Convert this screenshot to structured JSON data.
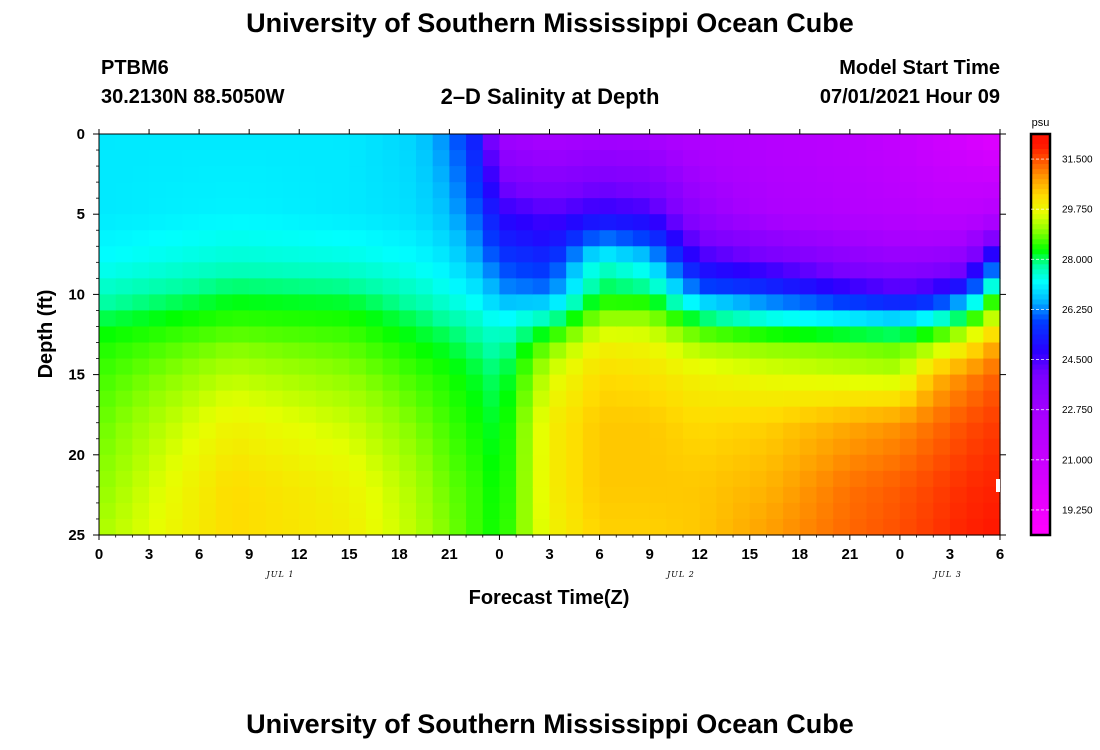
{
  "header": {
    "title": "University of Southern Mississippi Ocean Cube",
    "station": "PTBM6",
    "coords": "30.2130N  88.5050W",
    "subtitle": "2–D Salinity at Depth",
    "model_label": "Model Start Time",
    "model_time": "07/01/2021 Hour 09"
  },
  "footer": {
    "title": "University of Southern Mississippi Ocean Cube"
  },
  "chart_data": {
    "type": "heatmap",
    "title": "2–D Salinity at Depth",
    "xlabel": "Forecast Time(Z)",
    "ylabel": "Depth (ft)",
    "x_ticks": [
      "0",
      "3",
      "6",
      "9",
      "12",
      "15",
      "18",
      "21",
      "0",
      "3",
      "6",
      "9",
      "12",
      "15",
      "18",
      "21",
      "0",
      "3",
      "6"
    ],
    "x_range_hours": [
      0,
      54
    ],
    "date_labels": [
      {
        "text": "JUL 1",
        "hour": 11
      },
      {
        "text": "JUL 2",
        "hour": 35
      },
      {
        "text": "JUL 3",
        "hour": 51
      }
    ],
    "y_ticks": [
      0,
      5,
      10,
      15,
      20,
      25
    ],
    "ylim": [
      0,
      25
    ],
    "colorbar": {
      "unit": "psu",
      "range": [
        18.375,
        32.375
      ],
      "labels": [
        "31.500",
        "29.750",
        "28.000",
        "26.250",
        "24.500",
        "22.750",
        "21.000",
        "19.250"
      ]
    },
    "depth_nodes": [
      0,
      5,
      8,
      10,
      11,
      12,
      13,
      15,
      18,
      22,
      25
    ],
    "grid": [
      {
        "hour": 0,
        "salinity": [
          27.0,
          27.0,
          27.2,
          27.6,
          27.9,
          28.2,
          28.4,
          28.6,
          28.8,
          29.0,
          29.2
        ]
      },
      {
        "hour": 8,
        "salinity": [
          27.0,
          27.1,
          27.5,
          28.1,
          28.4,
          28.6,
          28.9,
          29.3,
          29.8,
          30.2,
          30.2
        ]
      },
      {
        "hour": 15,
        "salinity": [
          27.0,
          27.0,
          27.4,
          28.0,
          28.3,
          28.5,
          28.7,
          29.0,
          29.4,
          29.8,
          29.9
        ]
      },
      {
        "hour": 19,
        "salinity": [
          26.8,
          26.9,
          27.2,
          27.6,
          27.9,
          28.1,
          28.3,
          28.6,
          28.9,
          29.2,
          29.3
        ]
      },
      {
        "hour": 21,
        "salinity": [
          26.2,
          26.6,
          27.0,
          27.3,
          27.6,
          27.9,
          28.1,
          28.4,
          28.6,
          28.8,
          28.9
        ]
      },
      {
        "hour": 23,
        "salinity": [
          25.0,
          25.8,
          26.4,
          27.0,
          27.3,
          27.6,
          27.8,
          28.1,
          28.3,
          28.5,
          28.5
        ]
      },
      {
        "hour": 24,
        "salinity": [
          22.8,
          24.8,
          25.8,
          26.4,
          26.9,
          27.3,
          27.6,
          27.9,
          28.1,
          28.2,
          28.3
        ]
      },
      {
        "hour": 27,
        "salinity": [
          22.4,
          24.4,
          25.5,
          26.2,
          27.3,
          28.0,
          28.8,
          29.5,
          29.9,
          29.9,
          29.8
        ]
      },
      {
        "hour": 30,
        "salinity": [
          22.6,
          24.8,
          27.5,
          28.2,
          28.8,
          29.3,
          29.8,
          30.2,
          30.4,
          30.4,
          30.3
        ]
      },
      {
        "hour": 33,
        "salinity": [
          22.5,
          24.6,
          26.9,
          28.1,
          28.8,
          29.3,
          29.7,
          30.1,
          30.4,
          30.4,
          30.3
        ]
      },
      {
        "hour": 36,
        "salinity": [
          22.1,
          23.2,
          24.7,
          26.2,
          27.6,
          28.4,
          29.1,
          29.8,
          30.2,
          30.4,
          30.4
        ]
      },
      {
        "hour": 40,
        "salinity": [
          21.9,
          22.4,
          24.2,
          25.8,
          26.8,
          27.9,
          28.9,
          29.6,
          30.3,
          30.6,
          30.8
        ]
      },
      {
        "hour": 45,
        "salinity": [
          21.6,
          22.0,
          23.5,
          25.0,
          26.5,
          27.5,
          28.8,
          29.4,
          30.7,
          31.2,
          31.3
        ]
      },
      {
        "hour": 48,
        "salinity": [
          21.2,
          21.8,
          23.2,
          24.6,
          26.2,
          27.3,
          28.7,
          29.3,
          30.9,
          31.4,
          31.5
        ]
      },
      {
        "hour": 50,
        "salinity": [
          20.8,
          21.6,
          23.3,
          24.9,
          26.5,
          28.0,
          29.0,
          30.5,
          31.2,
          31.6,
          31.7
        ]
      },
      {
        "hour": 52,
        "salinity": [
          20.3,
          21.6,
          23.6,
          25.8,
          27.5,
          28.9,
          29.8,
          31.0,
          31.5,
          31.8,
          31.9
        ]
      },
      {
        "hour": 54,
        "salinity": [
          19.8,
          22.0,
          26.0,
          28.8,
          29.5,
          30.0,
          30.8,
          31.4,
          31.7,
          31.9,
          32.0
        ]
      }
    ]
  }
}
